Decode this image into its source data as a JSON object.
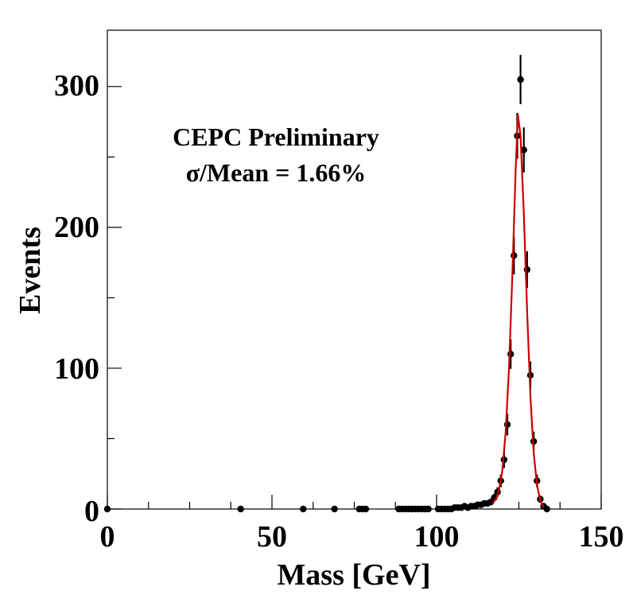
{
  "chart_data": {
    "type": "scatter",
    "title": "",
    "xlabel": "Mass [GeV]",
    "ylabel": "Events",
    "xlim": [
      0,
      150
    ],
    "ylim": [
      0,
      340
    ],
    "x_ticks": [
      "0",
      "50",
      "100",
      "150"
    ],
    "y_ticks": [
      "0",
      "100",
      "200",
      "300"
    ],
    "grid": false,
    "annotations": [
      "CEPC Preliminary",
      "σ/Mean = 1.66%"
    ],
    "colors": {
      "points": "#000000",
      "fit": "#cc0000"
    },
    "series": [
      {
        "type": "scatter-with-errors",
        "points": [
          [
            0,
            0
          ],
          [
            40.5,
            0
          ],
          [
            59.5,
            0
          ],
          [
            69,
            0
          ],
          [
            76.5,
            0
          ],
          [
            77.5,
            0
          ],
          [
            78.5,
            0
          ],
          [
            88.5,
            0
          ],
          [
            89.5,
            0
          ],
          [
            90.5,
            0
          ],
          [
            91.5,
            0
          ],
          [
            92.5,
            0
          ],
          [
            93.5,
            0
          ],
          [
            94.5,
            0
          ],
          [
            95.5,
            0
          ],
          [
            96.5,
            0
          ],
          [
            97.5,
            0
          ],
          [
            100.5,
            0
          ],
          [
            101.5,
            0
          ],
          [
            102.5,
            0
          ],
          [
            103.5,
            0
          ],
          [
            104.5,
            0
          ],
          [
            105.5,
            1
          ],
          [
            106.5,
            1
          ],
          [
            107.5,
            1
          ],
          [
            108.5,
            2
          ],
          [
            109.5,
            1
          ],
          [
            110.5,
            2
          ],
          [
            111.5,
            2
          ],
          [
            112.5,
            3
          ],
          [
            113.5,
            3
          ],
          [
            114.5,
            4
          ],
          [
            115.5,
            4
          ],
          [
            116.5,
            5
          ],
          [
            117.5,
            8
          ],
          [
            118.5,
            12
          ],
          [
            119.5,
            20
          ],
          [
            120.5,
            35
          ],
          [
            121.5,
            60
          ],
          [
            122.5,
            110
          ],
          [
            123.5,
            180
          ],
          [
            124.5,
            265
          ],
          [
            125.5,
            305
          ],
          [
            126.5,
            255
          ],
          [
            127.5,
            170
          ],
          [
            128.5,
            95
          ],
          [
            129.5,
            48
          ],
          [
            130.5,
            20
          ],
          [
            131.5,
            7
          ],
          [
            132.5,
            2
          ],
          [
            133.5,
            0
          ]
        ]
      },
      {
        "type": "fit-line",
        "points": [
          [
            117,
            4
          ],
          [
            118,
            7
          ],
          [
            119,
            14
          ],
          [
            120,
            28
          ],
          [
            121,
            55
          ],
          [
            122,
            100
          ],
          [
            123,
            165
          ],
          [
            124,
            240
          ],
          [
            124.7,
            280
          ],
          [
            125.5,
            265
          ],
          [
            126.5,
            210
          ],
          [
            127.5,
            140
          ],
          [
            128.5,
            80
          ],
          [
            129.5,
            40
          ],
          [
            130.5,
            17
          ],
          [
            131.5,
            6
          ],
          [
            132.5,
            1
          ]
        ]
      }
    ]
  }
}
